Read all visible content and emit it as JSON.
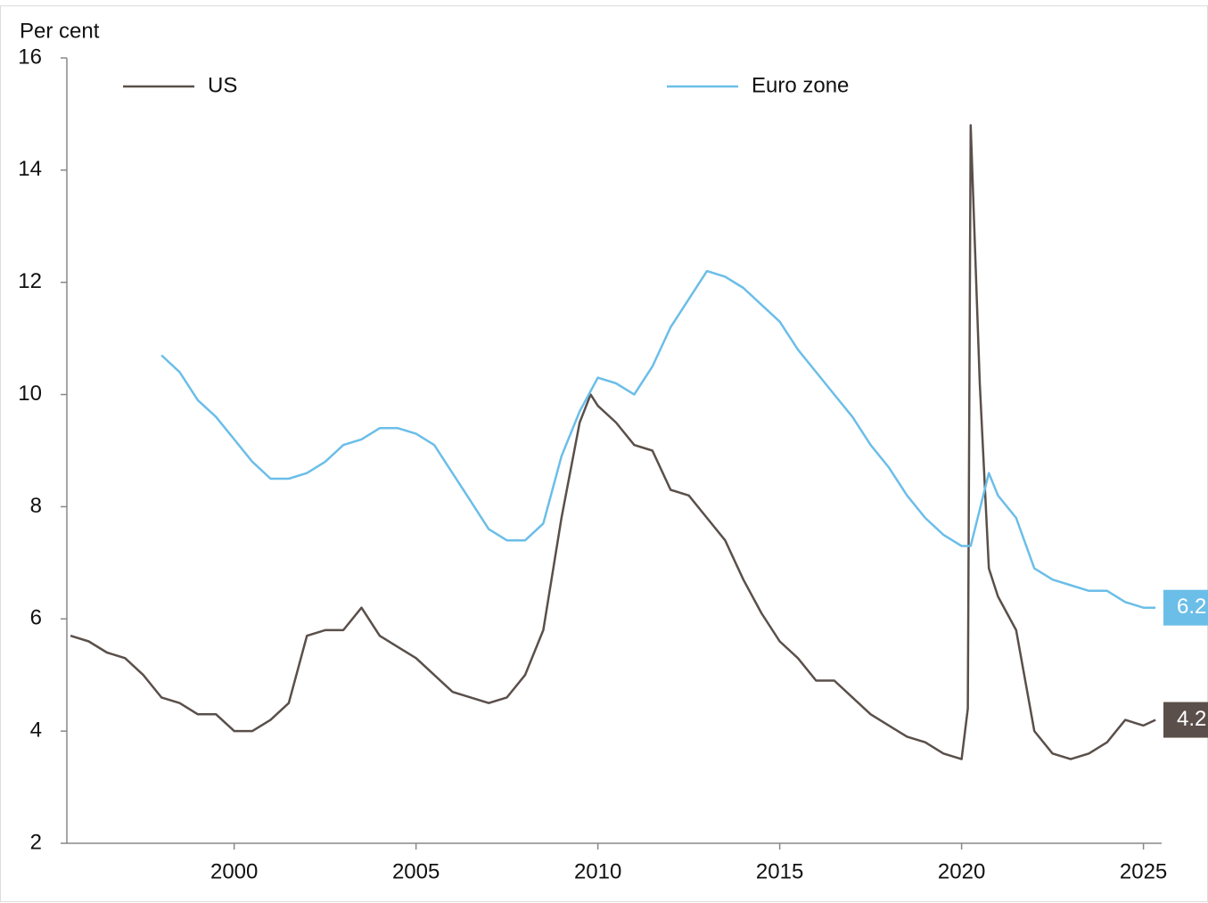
{
  "chart_data": {
    "type": "line",
    "y_label": "Per cent",
    "xlim": [
      1995.4,
      2025.5
    ],
    "xticks": [
      2000,
      2005,
      2010,
      2015,
      2020,
      2025
    ],
    "ylim": [
      2,
      16
    ],
    "yticks": [
      2,
      4,
      6,
      8,
      10,
      12,
      14,
      16
    ],
    "series": [
      {
        "name": "US",
        "color": "#5a4f4a",
        "end_label": "4.2",
        "x": [
          1995.5,
          1996,
          1996.5,
          1997,
          1997.5,
          1998,
          1998.5,
          1999,
          1999.5,
          2000,
          2000.5,
          2001,
          2001.5,
          2002,
          2002.5,
          2003,
          2003.5,
          2004,
          2004.5,
          2005,
          2005.5,
          2006,
          2006.5,
          2007,
          2007.5,
          2008,
          2008.5,
          2009,
          2009.5,
          2009.8,
          2010,
          2010.5,
          2011,
          2011.5,
          2012,
          2012.5,
          2013,
          2013.5,
          2014,
          2014.5,
          2015,
          2015.5,
          2016,
          2016.5,
          2017,
          2017.5,
          2018,
          2018.5,
          2019,
          2019.5,
          2020,
          2020.17,
          2020.25,
          2020.5,
          2020.75,
          2021,
          2021.5,
          2022,
          2022.5,
          2023,
          2023.5,
          2024,
          2024.5,
          2025,
          2025.33
        ],
        "values": [
          5.7,
          5.6,
          5.4,
          5.3,
          5.0,
          4.6,
          4.5,
          4.3,
          4.3,
          4.0,
          4.0,
          4.2,
          4.5,
          5.7,
          5.8,
          5.8,
          6.2,
          5.7,
          5.5,
          5.3,
          5.0,
          4.7,
          4.6,
          4.5,
          4.6,
          5.0,
          5.8,
          7.8,
          9.5,
          10.0,
          9.8,
          9.5,
          9.1,
          9.0,
          8.3,
          8.2,
          7.8,
          7.4,
          6.7,
          6.1,
          5.6,
          5.3,
          4.9,
          4.9,
          4.6,
          4.3,
          4.1,
          3.9,
          3.8,
          3.6,
          3.5,
          4.4,
          14.8,
          10.2,
          6.9,
          6.4,
          5.8,
          4.0,
          3.6,
          3.5,
          3.6,
          3.8,
          4.2,
          4.1,
          4.2
        ]
      },
      {
        "name": "Euro zone",
        "color": "#6bbee8",
        "end_label": "6.2",
        "x": [
          1998,
          1998.5,
          1999,
          1999.5,
          2000,
          2000.5,
          2001,
          2001.5,
          2002,
          2002.5,
          2003,
          2003.5,
          2004,
          2004.5,
          2005,
          2005.5,
          2006,
          2006.5,
          2007,
          2007.5,
          2008,
          2008.5,
          2009,
          2009.5,
          2010,
          2010.5,
          2011,
          2011.5,
          2012,
          2012.5,
          2013,
          2013.5,
          2014,
          2014.5,
          2015,
          2015.5,
          2016,
          2016.5,
          2017,
          2017.5,
          2018,
          2018.5,
          2019,
          2019.5,
          2020,
          2020.25,
          2020.75,
          2021,
          2021.5,
          2022,
          2022.5,
          2023,
          2023.5,
          2024,
          2024.5,
          2025,
          2025.33
        ],
        "values": [
          10.7,
          10.4,
          9.9,
          9.6,
          9.2,
          8.8,
          8.5,
          8.5,
          8.6,
          8.8,
          9.1,
          9.2,
          9.4,
          9.4,
          9.3,
          9.1,
          8.6,
          8.1,
          7.6,
          7.4,
          7.4,
          7.7,
          8.9,
          9.7,
          10.3,
          10.2,
          10.0,
          10.5,
          11.2,
          11.7,
          12.2,
          12.1,
          11.9,
          11.6,
          11.3,
          10.8,
          10.4,
          10.0,
          9.6,
          9.1,
          8.7,
          8.2,
          7.8,
          7.5,
          7.3,
          7.3,
          8.6,
          8.2,
          7.8,
          6.9,
          6.7,
          6.6,
          6.5,
          6.5,
          6.3,
          6.2,
          6.2
        ]
      }
    ]
  }
}
